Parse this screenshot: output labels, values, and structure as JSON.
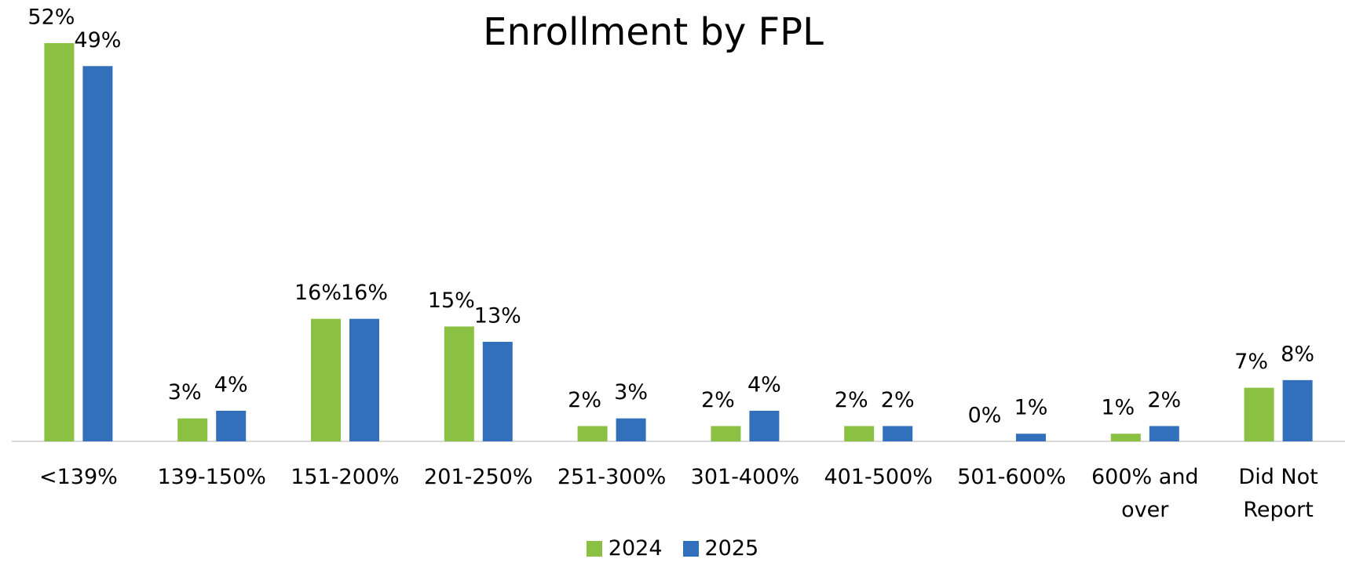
{
  "chart_data": {
    "type": "bar",
    "title": "Enrollment by FPL",
    "categories": [
      "<139%",
      "139-150%",
      "151-200%",
      "201-250%",
      "251-300%",
      "301-400%",
      "401-500%",
      "501-600%",
      "600% and over",
      "Did Not Report"
    ],
    "series": [
      {
        "name": "2024",
        "color": "#8bc143",
        "values": [
          52,
          3,
          16,
          15,
          2,
          2,
          2,
          0,
          1,
          7
        ],
        "value_labels": [
          "52%",
          "3%",
          "16%",
          "15%",
          "2%",
          "2%",
          "2%",
          "0%",
          "1%",
          "7%"
        ]
      },
      {
        "name": "2025",
        "color": "#3370bb",
        "values": [
          49,
          4,
          16,
          13,
          3,
          4,
          2,
          1,
          2,
          8
        ],
        "value_labels": [
          "49%",
          "4%",
          "16%",
          "13%",
          "3%",
          "4%",
          "2%",
          "1%",
          "2%",
          "8%"
        ]
      }
    ],
    "legend": "bottom"
  }
}
